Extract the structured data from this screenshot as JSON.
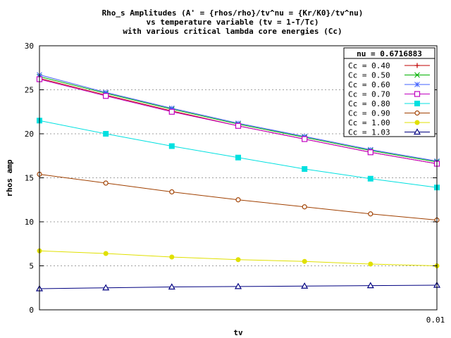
{
  "chart_data": {
    "type": "line",
    "title": [
      "Rho_s Amplitudes (A' = {rhos/rho}/tv^nu = {Kr/K0}/tv^nu)",
      "vs temperature variable (tv = 1-T/Tc)",
      "with various critical lambda core energies (Cc)"
    ],
    "xlabel": "tv",
    "ylabel": "rhos amp",
    "xlim": [
      0.0,
      0.01
    ],
    "ylim": [
      0,
      30
    ],
    "x_tick_labels": [
      {
        "value": 0.01,
        "label": "0.01"
      }
    ],
    "y_ticks": [
      0,
      5,
      10,
      15,
      20,
      25,
      30
    ],
    "grid": true,
    "legend_position": "top-right",
    "legend_header": "nu = 0.6716883",
    "x": [
      0.0,
      0.00167,
      0.00333,
      0.005,
      0.00667,
      0.00833,
      0.01
    ],
    "series": [
      {
        "name": "Cc = 0.40",
        "color": "#c00000",
        "marker": "plus",
        "values": [
          26.3,
          24.4,
          22.6,
          20.9,
          19.4,
          17.9,
          16.6
        ]
      },
      {
        "name": "Cc = 0.50",
        "color": "#00b000",
        "marker": "x",
        "values": [
          26.5,
          24.6,
          22.8,
          21.1,
          19.6,
          18.1,
          16.8
        ]
      },
      {
        "name": "Cc = 0.60",
        "color": "#4060ff",
        "marker": "star",
        "values": [
          26.7,
          24.7,
          22.9,
          21.2,
          19.7,
          18.2,
          16.9
        ]
      },
      {
        "name": "Cc = 0.70",
        "color": "#c000c0",
        "marker": "square-open",
        "values": [
          26.2,
          24.3,
          22.5,
          20.9,
          19.4,
          17.9,
          16.6
        ]
      },
      {
        "name": "Cc = 0.80",
        "color": "#00e0e0",
        "marker": "square-filled",
        "values": [
          21.5,
          20.0,
          18.6,
          17.3,
          16.0,
          14.9,
          13.9
        ]
      },
      {
        "name": "Cc = 0.90",
        "color": "#a04000",
        "marker": "circle-open",
        "values": [
          15.4,
          14.4,
          13.4,
          12.5,
          11.7,
          10.9,
          10.2
        ]
      },
      {
        "name": "Cc = 1.00",
        "color": "#e0e000",
        "marker": "circle-filled",
        "values": [
          6.7,
          6.4,
          6.0,
          5.7,
          5.5,
          5.2,
          5.0
        ]
      },
      {
        "name": "Cc = 1.03",
        "color": "#000080",
        "marker": "triangle-open",
        "values": [
          2.4,
          2.5,
          2.6,
          2.65,
          2.7,
          2.75,
          2.8
        ]
      }
    ]
  }
}
